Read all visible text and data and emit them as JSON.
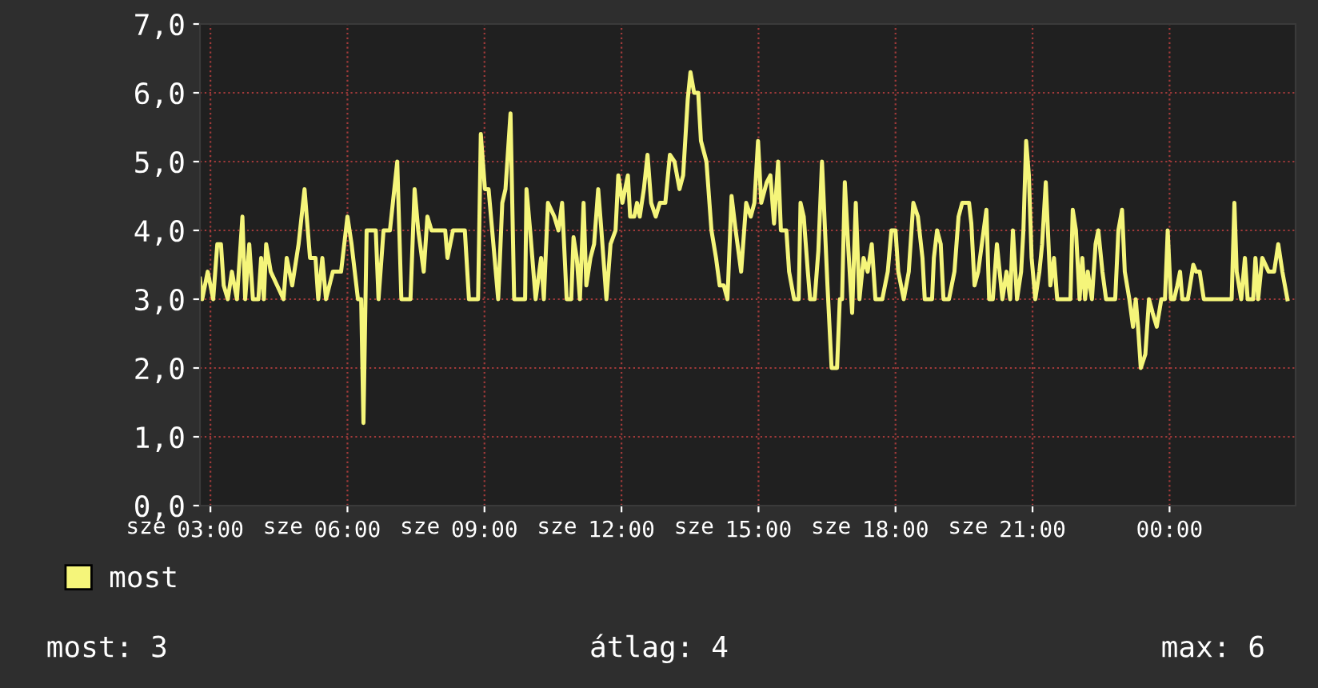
{
  "chart_data": {
    "type": "line",
    "xlim": [
      2.77,
      26.76
    ],
    "xticks": [
      {
        "value": 3,
        "label": "03:00"
      },
      {
        "value": 6,
        "label": "06:00"
      },
      {
        "value": 9,
        "label": "09:00"
      },
      {
        "value": 12,
        "label": "12:00"
      },
      {
        "value": 15,
        "label": "15:00"
      },
      {
        "value": 18,
        "label": "18:00"
      },
      {
        "value": 21,
        "label": "21:00"
      },
      {
        "value": 24,
        "label": "00:00"
      }
    ],
    "ylim": [
      0,
      7
    ],
    "yticks": [
      {
        "value": 0,
        "label": "0,0"
      },
      {
        "value": 1,
        "label": "1,0"
      },
      {
        "value": 2,
        "label": "2,0"
      },
      {
        "value": 3,
        "label": "3,0"
      },
      {
        "value": 4,
        "label": "4,0"
      },
      {
        "value": 5,
        "label": "5,0"
      },
      {
        "value": 6,
        "label": "6,0"
      },
      {
        "value": 7,
        "label": "7,0"
      }
    ],
    "grid": true,
    "legend": "bottom left",
    "annotations": [
      "most: 3",
      "átlag: 4",
      "max: 6",
      "sze",
      "sze",
      "sze",
      "sze",
      "sze",
      "sze",
      "sze"
    ],
    "series": [
      {
        "name": "most",
        "color": "#f5f57a",
        "x": [
          2.77,
          2.82,
          2.94,
          3.06,
          3.15,
          3.23,
          3.29,
          3.38,
          3.47,
          3.58,
          3.7,
          3.76,
          3.85,
          3.93,
          4.05,
          4.11,
          4.17,
          4.22,
          4.32,
          4.46,
          4.6,
          4.67,
          4.79,
          4.93,
          5.06,
          5.18,
          5.3,
          5.36,
          5.45,
          5.53,
          5.68,
          5.86,
          6.0,
          6.09,
          6.23,
          6.3,
          6.35,
          6.42,
          6.62,
          6.68,
          6.79,
          6.93,
          7.09,
          7.18,
          7.38,
          7.47,
          7.55,
          7.67,
          7.75,
          7.84,
          8.14,
          8.19,
          8.31,
          8.57,
          8.66,
          8.86,
          8.92,
          9.01,
          9.09,
          9.3,
          9.39,
          9.46,
          9.57,
          9.65,
          9.89,
          9.92,
          10.0,
          10.12,
          10.24,
          10.3,
          10.39,
          10.53,
          10.62,
          10.7,
          10.8,
          10.9,
          10.95,
          11.02,
          11.09,
          11.17,
          11.23,
          11.32,
          11.4,
          11.49,
          11.56,
          11.67,
          11.76,
          11.87,
          11.93,
          12.02,
          12.14,
          12.19,
          12.28,
          12.34,
          12.4,
          12.49,
          12.57,
          12.65,
          12.75,
          12.84,
          12.96,
          13.06,
          13.16,
          13.27,
          13.35,
          13.45,
          13.51,
          13.59,
          13.68,
          13.74,
          13.86,
          13.97,
          14.07,
          14.15,
          14.24,
          14.32,
          14.41,
          14.5,
          14.62,
          14.73,
          14.83,
          14.91,
          14.99,
          15.06,
          15.18,
          15.26,
          15.34,
          15.43,
          15.49,
          15.61,
          15.67,
          15.78,
          15.88,
          15.92,
          15.99,
          16.08,
          16.13,
          16.23,
          16.31,
          16.39,
          16.51,
          16.6,
          16.72,
          16.78,
          16.83,
          16.89,
          16.97,
          17.05,
          17.13,
          17.21,
          17.3,
          17.39,
          17.48,
          17.56,
          17.71,
          17.83,
          17.91,
          18.0,
          18.06,
          18.18,
          18.29,
          18.39,
          18.49,
          18.59,
          18.64,
          18.8,
          18.84,
          18.91,
          18.99,
          19.05,
          19.17,
          19.29,
          19.38,
          19.46,
          19.61,
          19.66,
          19.73,
          19.81,
          19.89,
          19.93,
          19.99,
          20.05,
          20.13,
          20.22,
          20.28,
          20.34,
          20.43,
          20.51,
          20.57,
          20.66,
          20.75,
          20.8,
          20.86,
          20.92,
          20.98,
          21.06,
          21.15,
          21.21,
          21.29,
          21.39,
          21.47,
          21.54,
          21.83,
          21.88,
          21.95,
          22.03,
          22.09,
          22.15,
          22.21,
          22.3,
          22.38,
          22.44,
          22.53,
          22.61,
          22.81,
          22.88,
          22.96,
          23.02,
          23.12,
          23.2,
          23.26,
          23.31,
          23.37,
          23.47,
          23.55,
          23.63,
          23.72,
          23.82,
          23.9,
          23.96,
          24.03,
          24.1,
          24.17,
          24.23,
          24.28,
          24.4,
          24.52,
          24.58,
          24.66,
          24.75,
          25.36,
          25.42,
          25.47,
          25.57,
          25.65,
          25.71,
          25.83,
          25.88,
          25.94,
          26.03,
          26.17,
          26.29,
          26.38,
          26.47,
          26.58
        ],
        "values": [
          3.3,
          3.0,
          3.4,
          3.0,
          3.8,
          3.8,
          3.2,
          3.0,
          3.4,
          3.0,
          4.2,
          3.0,
          3.8,
          3.0,
          3.0,
          3.6,
          3.0,
          3.8,
          3.4,
          3.2,
          3.0,
          3.6,
          3.2,
          3.8,
          4.6,
          3.6,
          3.6,
          3.0,
          3.6,
          3.0,
          3.4,
          3.4,
          4.2,
          3.8,
          3.0,
          3.0,
          1.2,
          4.0,
          4.0,
          3.0,
          4.0,
          4.0,
          5.0,
          3.0,
          3.0,
          4.6,
          4.0,
          3.4,
          4.2,
          4.0,
          4.0,
          3.6,
          4.0,
          4.0,
          3.0,
          3.0,
          5.4,
          4.6,
          4.6,
          3.0,
          4.4,
          4.6,
          5.7,
          3.0,
          3.0,
          4.6,
          4.0,
          3.0,
          3.6,
          3.0,
          4.4,
          4.2,
          4.0,
          4.4,
          3.0,
          3.0,
          3.9,
          3.6,
          3.0,
          4.4,
          3.2,
          3.6,
          3.8,
          4.6,
          4.0,
          3.0,
          3.8,
          4.0,
          4.8,
          4.4,
          4.8,
          4.2,
          4.2,
          4.4,
          4.2,
          4.6,
          5.1,
          4.4,
          4.2,
          4.4,
          4.4,
          5.1,
          5.0,
          4.6,
          4.8,
          5.9,
          6.3,
          6.0,
          6.0,
          5.3,
          5.0,
          4.0,
          3.6,
          3.2,
          3.2,
          3.0,
          4.5,
          4.0,
          3.4,
          4.4,
          4.2,
          4.4,
          5.3,
          4.4,
          4.7,
          4.8,
          4.1,
          5.0,
          4.0,
          4.0,
          3.4,
          3.0,
          3.0,
          4.4,
          4.2,
          3.4,
          3.0,
          3.0,
          3.7,
          5.0,
          3.2,
          2.0,
          2.0,
          3.0,
          3.0,
          4.7,
          3.7,
          2.8,
          4.4,
          3.0,
          3.6,
          3.4,
          3.8,
          3.0,
          3.0,
          3.4,
          4.0,
          4.0,
          3.4,
          3.0,
          3.4,
          4.4,
          4.2,
          3.6,
          3.0,
          3.0,
          3.6,
          4.0,
          3.8,
          3.0,
          3.0,
          3.4,
          4.2,
          4.4,
          4.4,
          4.1,
          3.2,
          3.4,
          3.8,
          4.0,
          4.3,
          3.0,
          3.0,
          3.8,
          3.4,
          3.0,
          3.4,
          3.0,
          4.0,
          3.0,
          3.4,
          4.0,
          5.3,
          4.8,
          3.6,
          3.0,
          3.4,
          3.8,
          4.7,
          3.2,
          3.6,
          3.0,
          3.0,
          4.3,
          4.0,
          3.0,
          3.6,
          3.0,
          3.4,
          3.0,
          3.8,
          4.0,
          3.4,
          3.0,
          3.0,
          4.0,
          4.3,
          3.4,
          3.0,
          2.6,
          3.0,
          2.6,
          2.0,
          2.2,
          3.0,
          2.8,
          2.6,
          3.0,
          3.0,
          4.0,
          3.0,
          3.0,
          3.2,
          3.4,
          3.0,
          3.0,
          3.5,
          3.4,
          3.4,
          3.0,
          3.0,
          4.4,
          3.4,
          3.0,
          3.6,
          3.0,
          3.0,
          3.6,
          3.0,
          3.6,
          3.4,
          3.4,
          3.8,
          3.4,
          3.0
        ]
      }
    ]
  }
}
